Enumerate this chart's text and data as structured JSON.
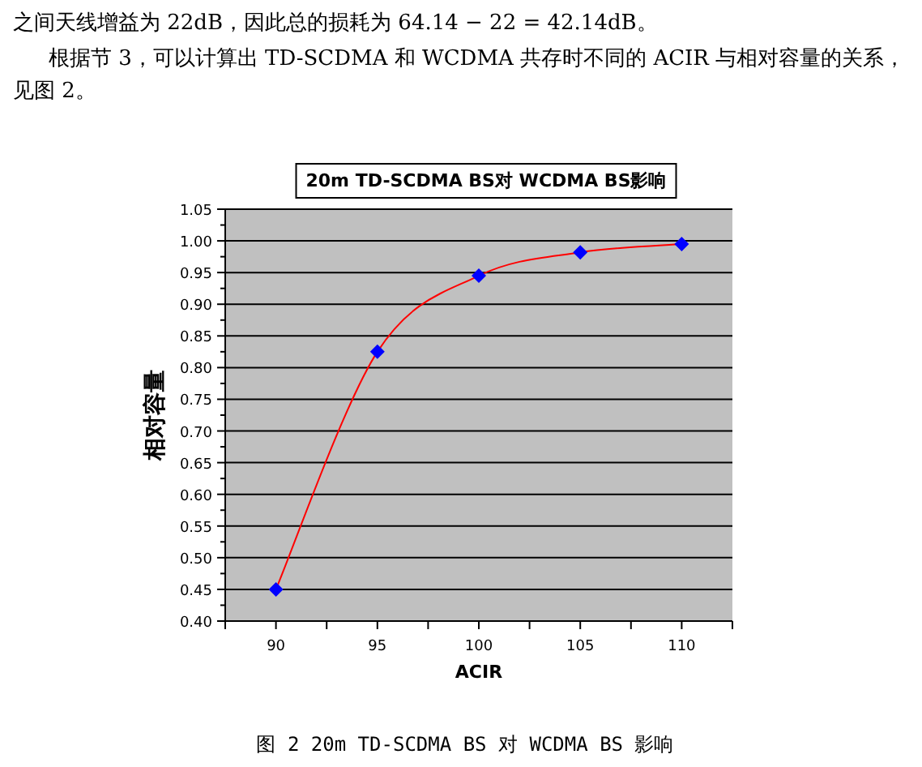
{
  "chart_data": {
    "type": "line",
    "title": "20m TD-SCDMA BS对 WCDMA BS影响",
    "xlabel": "ACIR",
    "ylabel": "相对容量",
    "annotations": [
      "之间天线增益为 22dB，因此总的损耗为 64.14 − 22 = 42.14dB。",
      "根据节 3，可以计算出 TD-SCDMA 和 WCDMA 共存时不同的 ACIR 与相对容量的关系，见图 2。",
      "图 2 20m TD-SCDMA BS 对 WCDMA BS 影响"
    ],
    "x": [
      90,
      95,
      100,
      105,
      110
    ],
    "series": [
      {
        "color": "#ff0000",
        "values": [
          0.45,
          0.825,
          0.945,
          0.982,
          0.995
        ]
      }
    ],
    "marker": "diamond",
    "grid": "y",
    "xlim": [
      87.5,
      112.5
    ],
    "xticks": [
      90,
      {
        "value": 92.5,
        "label": null
      },
      95,
      {
        "value": 97.5,
        "label": null
      },
      100,
      {
        "value": 102.5,
        "label": null
      },
      105,
      {
        "value": 107.5,
        "label": null
      },
      110
    ],
    "ylim": [
      0.4,
      1.05
    ],
    "yticks": [
      {
        "value": 0.4,
        "label": "0.40"
      },
      {
        "value": 0.45,
        "label": "0.45"
      },
      {
        "value": 0.5,
        "label": "0.50"
      },
      {
        "value": 0.55,
        "label": "0.55"
      },
      {
        "value": 0.6,
        "label": "0.60"
      },
      {
        "value": 0.65,
        "label": "0.65"
      },
      {
        "value": 0.7,
        "label": "0.70"
      },
      {
        "value": 0.75,
        "label": "0.75"
      },
      {
        "value": 0.8,
        "label": "0.80"
      },
      {
        "value": 0.85,
        "label": "0.85"
      },
      {
        "value": 0.9,
        "label": "0.90"
      },
      {
        "value": 0.95,
        "label": "0.95"
      },
      {
        "value": 1.0,
        "label": "1.00"
      },
      {
        "value": 1.05,
        "label": "1.05"
      }
    ]
  }
}
